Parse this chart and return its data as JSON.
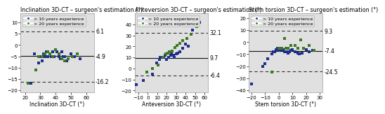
{
  "plots": [
    {
      "title": "Inclination 3D-CT – surgeon's estimation (°)",
      "xlabel": "Inclination 3D-CT (°)",
      "mean": -4.9,
      "upper": 6.1,
      "lower": -16.2,
      "upper_label": "6.1",
      "mean_label": "4.9",
      "lower_label": "16.2",
      "mean_sign": "-",
      "upper_sign": "",
      "lower_sign": "-",
      "xlim": [
        17,
        65
      ],
      "ylim": [
        -21,
        14
      ],
      "xticks": [
        20,
        30,
        40,
        50,
        60
      ],
      "yticks": [
        -20,
        -15,
        -10,
        -5,
        0,
        5,
        10
      ],
      "blue_x": [
        24,
        26,
        29,
        30,
        31,
        31,
        32,
        33,
        34,
        35,
        36,
        37,
        38,
        39,
        40,
        41,
        42,
        43,
        44,
        45,
        46,
        47,
        50,
        52,
        56
      ],
      "blue_y": [
        -17,
        -4,
        -8,
        -5,
        -5,
        -7,
        -4,
        -5,
        -3,
        -5,
        -4,
        -5,
        -3,
        -5,
        -2,
        -3,
        -5,
        -6,
        -3,
        -5,
        -5,
        -7,
        -4,
        -5,
        -6
      ],
      "green_x": [
        22,
        27,
        29,
        31,
        33,
        35,
        36,
        38,
        40,
        42,
        44,
        46,
        48,
        51,
        54
      ],
      "green_y": [
        -17,
        -11,
        -5,
        -5,
        -4,
        -3,
        -4,
        -5,
        -2,
        -4,
        -6,
        -7,
        -6,
        -5,
        -4
      ]
    },
    {
      "title": "Anteversion 3D-CT – surgeon's estimation (°)",
      "xlabel": "Anteversion 3D-CT (°)",
      "mean": 9.7,
      "upper": 32.1,
      "lower": -6.4,
      "upper_label": "32.1",
      "mean_label": "9.7",
      "lower_label": "6.4",
      "mean_sign": "",
      "upper_sign": "",
      "lower_sign": "-",
      "xlim": [
        -14,
        64
      ],
      "ylim": [
        -22,
        50
      ],
      "xticks": [
        -10,
        0,
        10,
        20,
        30,
        40,
        50,
        60
      ],
      "yticks": [
        -20,
        -10,
        0,
        10,
        20,
        30,
        40
      ],
      "blue_x": [
        -12,
        -5,
        5,
        9,
        12,
        13,
        15,
        17,
        18,
        20,
        22,
        24,
        25,
        27,
        28,
        30,
        32,
        34,
        37,
        40,
        43,
        47,
        51,
        55
      ],
      "blue_y": [
        -15,
        -11,
        -5,
        5,
        8,
        10,
        10,
        10,
        12,
        8,
        10,
        12,
        14,
        12,
        10,
        13,
        14,
        15,
        18,
        22,
        20,
        35,
        40,
        42
      ],
      "green_x": [
        -1,
        5,
        11,
        16,
        19,
        21,
        23,
        26,
        29,
        31,
        34,
        37,
        41,
        46,
        52
      ],
      "green_y": [
        -3,
        0,
        3,
        10,
        13,
        14,
        15,
        16,
        19,
        21,
        23,
        25,
        27,
        31,
        38
      ]
    },
    {
      "title": "Stem torsion 3D-CT – surgeon's estimation (°)",
      "xlabel": "Stem torsion 3D-CT (°)",
      "mean": -7.4,
      "upper": 9.3,
      "lower": -24.5,
      "upper_label": "9.3",
      "mean_label": "7.4",
      "lower_label": "24.5",
      "mean_sign": "-",
      "upper_sign": "",
      "lower_sign": "-",
      "xlim": [
        -22,
        32
      ],
      "ylim": [
        -42,
        24
      ],
      "xticks": [
        -20,
        -10,
        0,
        10,
        20,
        30
      ],
      "yticks": [
        -40,
        -30,
        -20,
        -10,
        0,
        10,
        20
      ],
      "blue_x": [
        -20,
        -12,
        -10,
        -8,
        -5,
        -4,
        -3,
        -2,
        -1,
        0,
        1,
        2,
        3,
        4,
        5,
        6,
        7,
        8,
        9,
        10,
        12,
        14,
        15,
        17,
        20,
        22,
        25
      ],
      "blue_y": [
        -35,
        -20,
        -18,
        -14,
        -10,
        -8,
        -8,
        -6,
        -5,
        -7,
        -6,
        -5,
        -6,
        -8,
        -8,
        -8,
        -9,
        -8,
        -7,
        -6,
        -8,
        -9,
        -10,
        -9,
        -6,
        -8,
        -7
      ],
      "green_x": [
        -5,
        0,
        2,
        4,
        5,
        7,
        9,
        12,
        14,
        16,
        18,
        22,
        26
      ],
      "green_y": [
        -25,
        -5,
        -5,
        3,
        -5,
        -5,
        -3,
        -3,
        -5,
        2,
        -5,
        -3,
        -7
      ]
    }
  ],
  "blue_color": "#1f2f8c",
  "green_color": "#3a7a20",
  "bg_color": "#e0e0e0",
  "mean_line_color": "#111111",
  "ci_line_color": "#333333",
  "marker_size": 7,
  "legend_labels": [
    "> 10 years experience",
    "> 20 years experience"
  ],
  "title_fontsize": 5.8,
  "tick_fontsize": 5.0,
  "label_fontsize": 5.5,
  "annot_fontsize": 5.5,
  "legend_fontsize": 4.5
}
